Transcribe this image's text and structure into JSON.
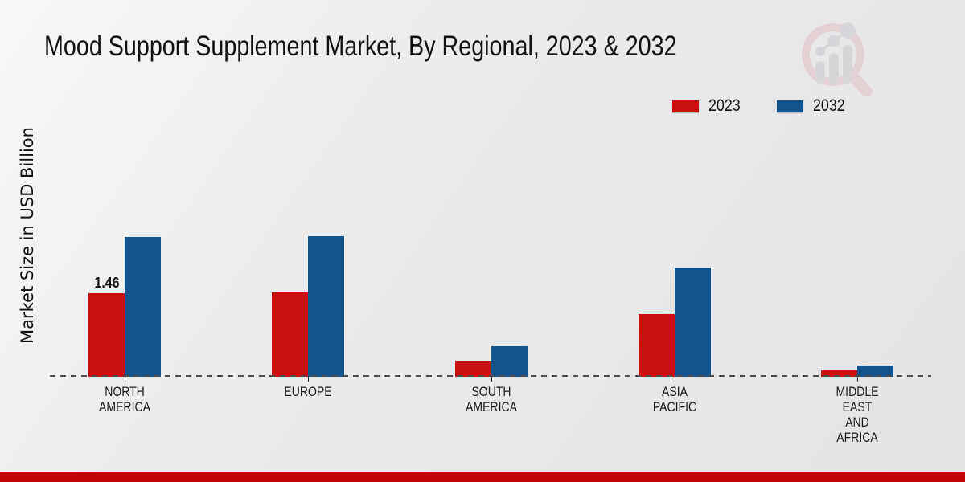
{
  "page": {
    "title": "Mood Support Supplement Market, By Regional, 2023 & 2032",
    "ylabel": "Market Size in USD Billion"
  },
  "legend": {
    "position": "top-right",
    "items": [
      {
        "label": "2023",
        "color": "#c9100f"
      },
      {
        "label": "2032",
        "color": "#14548c"
      }
    ]
  },
  "chart_data": {
    "type": "bar",
    "title": "Mood Support Supplement Market, By Regional, 2023 & 2032",
    "xlabel": "",
    "ylabel": "Market Size in USD Billion",
    "categories": [
      "NORTH AMERICA",
      "EUROPE",
      "SOUTH AMERICA",
      "ASIA PACIFIC",
      "MIDDLE EAST AND AFRICA"
    ],
    "category_lines": [
      [
        "NORTH",
        "AMERICA"
      ],
      [
        "EUROPE"
      ],
      [
        "SOUTH",
        "AMERICA"
      ],
      [
        "ASIA",
        "PACIFIC"
      ],
      [
        "MIDDLE",
        "EAST",
        "AND",
        "AFRICA"
      ]
    ],
    "series": [
      {
        "name": "2023",
        "color": "#c9100f",
        "values": [
          1.46,
          1.48,
          0.28,
          1.1,
          0.11
        ]
      },
      {
        "name": "2032",
        "color": "#14548c",
        "values": [
          2.45,
          2.46,
          0.54,
          1.91,
          0.2
        ]
      }
    ],
    "value_labels": [
      {
        "series": 0,
        "category": 0,
        "text": "1.46"
      }
    ],
    "unit": "USD Billion",
    "ylim": [
      0,
      3.0
    ],
    "grid": false,
    "legend_position": "top-right",
    "baseline_style": "dashed"
  },
  "branding": {
    "logo_name": "market-research-future-watermark",
    "bottom_bar_color": "#c00504"
  }
}
